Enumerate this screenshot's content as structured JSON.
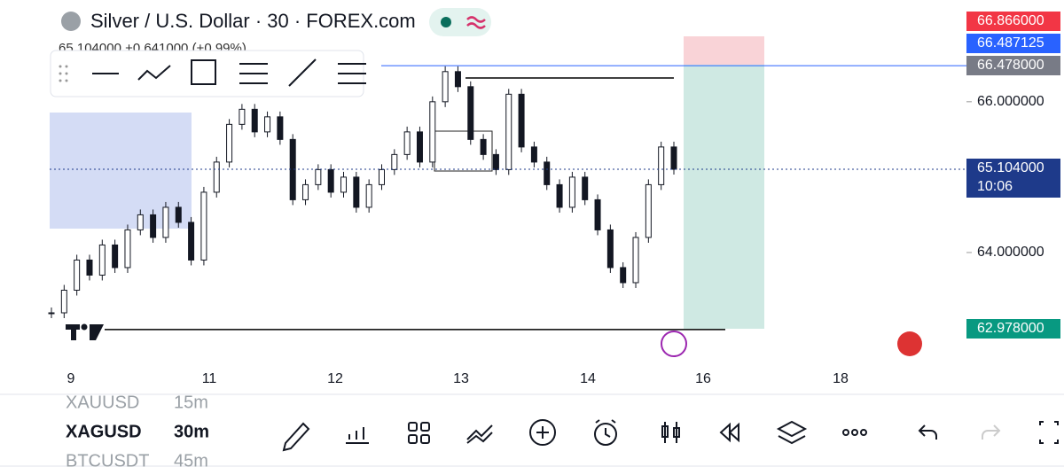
{
  "header": {
    "title": "Silver / U.S. Dollar · 30 · FOREX.com",
    "quote": "65.104000 +0.641000 (+0.99%)"
  },
  "chart_data": {
    "type": "candlestick",
    "closes": [
      63.2,
      63.5,
      63.9,
      63.7,
      64.1,
      63.8,
      64.3,
      64.5,
      64.2,
      64.6,
      64.4,
      63.9,
      64.8,
      65.2,
      65.7,
      65.9,
      65.6,
      65.8,
      65.5,
      64.7,
      64.9,
      65.1,
      64.8,
      65.0,
      64.6,
      64.9,
      65.1,
      65.3,
      65.6,
      65.2,
      66.0,
      66.4,
      66.2,
      65.5,
      65.3,
      65.1,
      66.1,
      65.4,
      65.2,
      64.9,
      64.6,
      65.0,
      64.7,
      64.3,
      63.8,
      63.6,
      64.2,
      64.9,
      65.4,
      65.104
    ],
    "ylim": [
      62.53,
      67.35
    ],
    "yticks": [
      {
        "value": 66,
        "label": "66.000000"
      },
      {
        "value": 64,
        "label": "64.000000"
      }
    ],
    "stop_loss": {
      "value": 66.866,
      "label": "66.866000"
    },
    "alert": {
      "value": 66.487125,
      "label": "66.487125"
    },
    "entry": {
      "value": 66.478,
      "label": "66.478000"
    },
    "last_price": {
      "value": 65.104,
      "label": "65.104000"
    },
    "countdown": "10:06",
    "take_profit": {
      "value": 62.978,
      "label": "62.978000"
    },
    "x_labels": [
      "9",
      "11",
      "12",
      "13",
      "14",
      "16",
      "18"
    ]
  },
  "watchlist": [
    [
      "XAUUSD",
      "15m"
    ],
    [
      "XAGUSD",
      "30m"
    ],
    [
      "BTCUSDT",
      "45m"
    ]
  ]
}
